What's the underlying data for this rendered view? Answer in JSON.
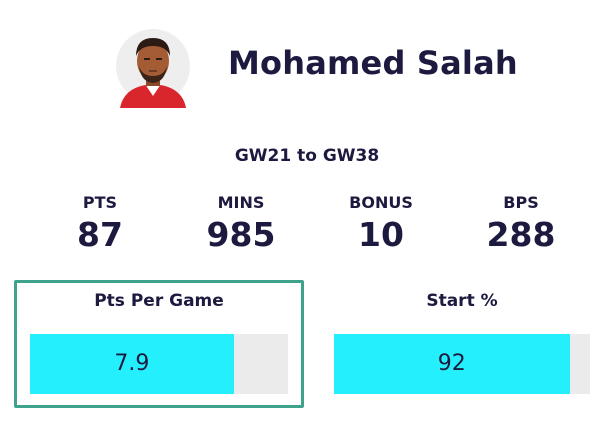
{
  "player": {
    "name": "Mohamed Salah",
    "avatar_icon": "player-avatar-icon"
  },
  "gameweek_range": "GW21 to GW38",
  "stats": [
    {
      "label": "PTS",
      "value": "87"
    },
    {
      "label": "MINS",
      "value": "985"
    },
    {
      "label": "BONUS",
      "value": "10"
    },
    {
      "label": "BPS",
      "value": "288"
    }
  ],
  "metrics": {
    "pts_per_game": {
      "label": "Pts Per Game",
      "value": "7.9",
      "fill_fraction": 0.79
    },
    "start_pct": {
      "label": "Start %",
      "value": "92",
      "fill_fraction": 0.92
    }
  },
  "colors": {
    "text": "#1d1a3f",
    "bar_fill": "#24f0fd",
    "bar_track": "#ebebeb",
    "highlight_border": "#3fa38c",
    "jersey": "#d9252c"
  }
}
